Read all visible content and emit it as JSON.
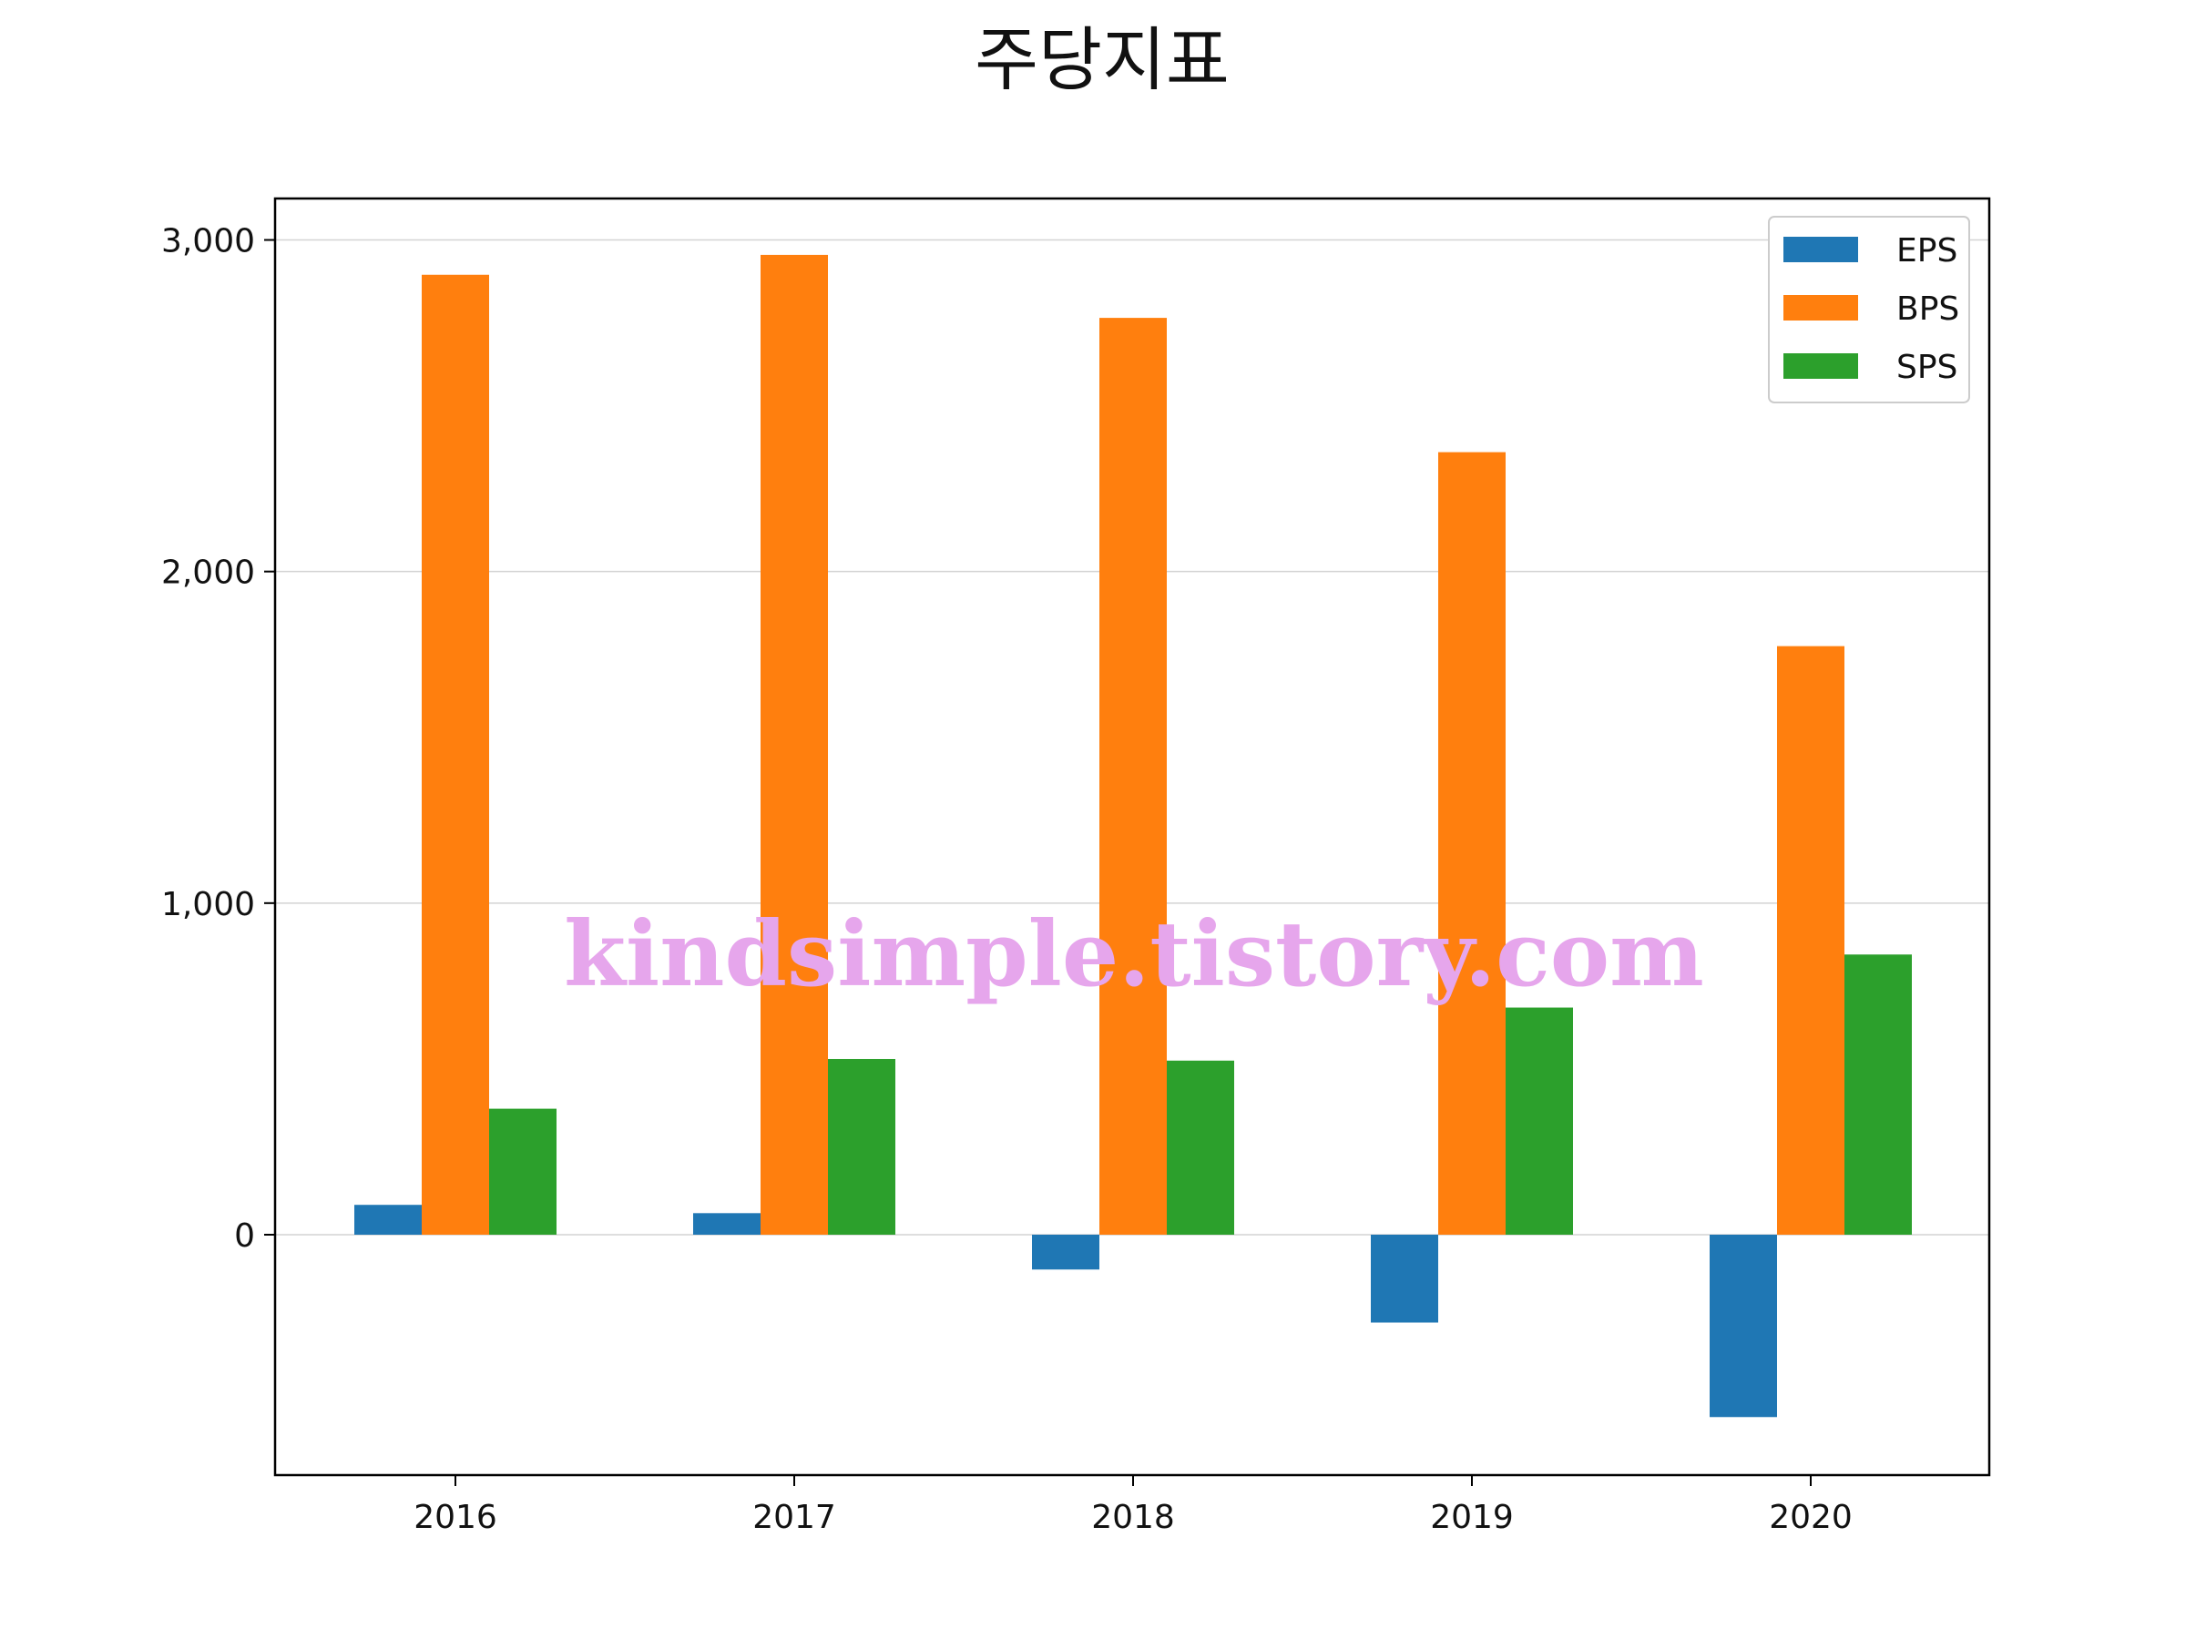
{
  "chart_data": {
    "type": "bar",
    "title": "주당지표",
    "xlabel": "",
    "ylabel": "",
    "categories": [
      "2016",
      "2017",
      "2018",
      "2019",
      "2020"
    ],
    "series": [
      {
        "name": "EPS",
        "color": "#1f77b4",
        "values": [
          90,
          65,
          -105,
          -265,
          -550
        ]
      },
      {
        "name": "BPS",
        "color": "#ff7f0e",
        "values": [
          2895,
          2955,
          2765,
          2360,
          1775
        ]
      },
      {
        "name": "SPS",
        "color": "#2ca02c",
        "values": [
          380,
          530,
          525,
          685,
          845
        ]
      }
    ],
    "ylim": [
      -725,
      3125
    ],
    "yticks": [
      0,
      1000,
      2000,
      3000
    ],
    "ytick_labels": [
      "0",
      "1,000",
      "2,000",
      "3,000"
    ],
    "grid": true,
    "legend_position": "top-right",
    "watermark": "kindsimple.tistory.com"
  }
}
